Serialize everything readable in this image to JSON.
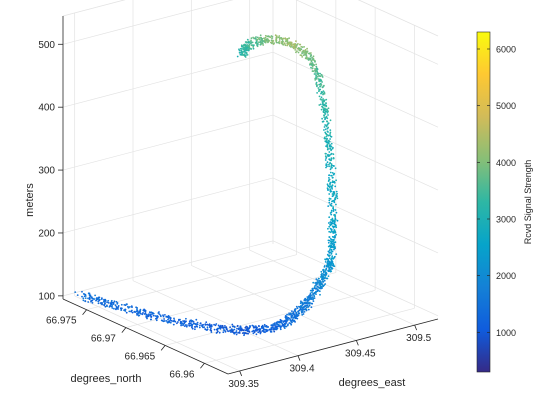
{
  "chart_data": {
    "type": "scatter",
    "subtype": "3d-scatter",
    "title": "",
    "xlabel": "degrees_east",
    "ylabel": "degrees_north",
    "zlabel": "meters",
    "xlim": [
      309.34,
      309.52
    ],
    "ylim": [
      66.957,
      66.978
    ],
    "zlim": [
      95,
      545
    ],
    "x_ticks": [
      "309.35",
      "309.4",
      "309.45",
      "309.5"
    ],
    "y_ticks": [
      "66.96",
      "66.965",
      "66.97",
      "66.975"
    ],
    "z_ticks": [
      "100",
      "200",
      "300",
      "400",
      "500"
    ],
    "grid": true,
    "colorbar": {
      "label": "Rcvd Signal Strength",
      "range": [
        300,
        6300
      ],
      "ticks": [
        "1000",
        "2000",
        "3000",
        "4000",
        "5000",
        "6000"
      ],
      "colormap": "parula"
    },
    "series": [
      {
        "values_description": "flight track point cloud",
        "points": [
          {
            "x": 309.341,
            "y": 66.976,
            "z": 112,
            "c": 1500
          },
          {
            "x": 309.352,
            "y": 66.9735,
            "z": 106,
            "c": 1400
          },
          {
            "x": 309.363,
            "y": 66.9705,
            "z": 102,
            "c": 1300
          },
          {
            "x": 309.374,
            "y": 66.9675,
            "z": 100,
            "c": 1200
          },
          {
            "x": 309.385,
            "y": 66.9648,
            "z": 101,
            "c": 1100
          },
          {
            "x": 309.396,
            "y": 66.9628,
            "z": 104,
            "c": 1050
          },
          {
            "x": 309.406,
            "y": 66.9614,
            "z": 110,
            "c": 1150
          },
          {
            "x": 309.415,
            "y": 66.9606,
            "z": 122,
            "c": 1400
          },
          {
            "x": 309.424,
            "y": 66.9602,
            "z": 138,
            "c": 1600
          },
          {
            "x": 309.433,
            "y": 66.96,
            "z": 158,
            "c": 1800
          },
          {
            "x": 309.441,
            "y": 66.96,
            "z": 180,
            "c": 2000
          },
          {
            "x": 309.448,
            "y": 66.9601,
            "z": 200,
            "c": 2300
          },
          {
            "x": 309.452,
            "y": 66.9603,
            "z": 240,
            "c": 2500
          },
          {
            "x": 309.455,
            "y": 66.9608,
            "z": 300,
            "c": 2700
          },
          {
            "x": 309.457,
            "y": 66.9614,
            "z": 360,
            "c": 2900
          },
          {
            "x": 309.458,
            "y": 66.9621,
            "z": 420,
            "c": 3200
          },
          {
            "x": 309.458,
            "y": 66.9628,
            "z": 470,
            "c": 3500
          },
          {
            "x": 309.456,
            "y": 66.9638,
            "z": 505,
            "c": 3900
          },
          {
            "x": 309.449,
            "y": 66.9652,
            "z": 522,
            "c": 4300
          },
          {
            "x": 309.439,
            "y": 66.9667,
            "z": 525,
            "c": 4000
          },
          {
            "x": 309.43,
            "y": 66.9676,
            "z": 515,
            "c": 3500
          },
          {
            "x": 309.425,
            "y": 66.968,
            "z": 500,
            "c": 3200
          }
        ]
      }
    ]
  }
}
